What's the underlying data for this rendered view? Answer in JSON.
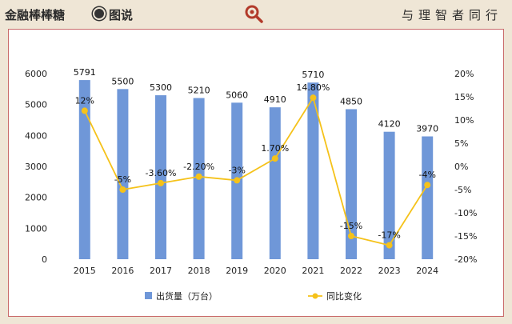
{
  "header": {
    "brand": "金融棒棒糖",
    "brand_sub": "图说",
    "slogan": "与理智者同行"
  },
  "colors": {
    "bar": "#6f97d8",
    "line": "#f5c21a",
    "border": "#c96a6a",
    "background": "#efe6d6"
  },
  "chart_data": {
    "type": "bar",
    "categories": [
      "2015",
      "2016",
      "2017",
      "2018",
      "2019",
      "2020",
      "2021",
      "2022",
      "2023",
      "2024"
    ],
    "series": [
      {
        "name": "出货量（万台）",
        "type": "bar",
        "axis": "left",
        "values": [
          5791,
          5500,
          5300,
          5210,
          5060,
          4910,
          5710,
          4850,
          4120,
          3970
        ],
        "labels": [
          "5791",
          "5500",
          "5300",
          "5210",
          "5060",
          "4910",
          "5710",
          "4850",
          "4120",
          "3970"
        ]
      },
      {
        "name": "同比变化",
        "type": "line",
        "axis": "right",
        "values": [
          12,
          -5,
          -3.6,
          -2.2,
          -3,
          1.7,
          14.8,
          -15,
          -17,
          -4
        ],
        "labels": [
          "12%",
          "-5%",
          "-3.60%",
          "-2.20%",
          "-3%",
          "1.70%",
          "14.80%",
          "-15%",
          "-17%",
          "-4%"
        ]
      }
    ],
    "y_left": {
      "min": 0,
      "max": 6000,
      "ticks": [
        "0",
        "1000",
        "2000",
        "3000",
        "4000",
        "5000",
        "6000"
      ]
    },
    "y_right": {
      "min": -20,
      "max": 20,
      "ticks": [
        "-20%",
        "-15%",
        "-10%",
        "-5%",
        "0%",
        "5%",
        "10%",
        "15%",
        "20%"
      ]
    },
    "legend": "bottom",
    "grid": false
  }
}
